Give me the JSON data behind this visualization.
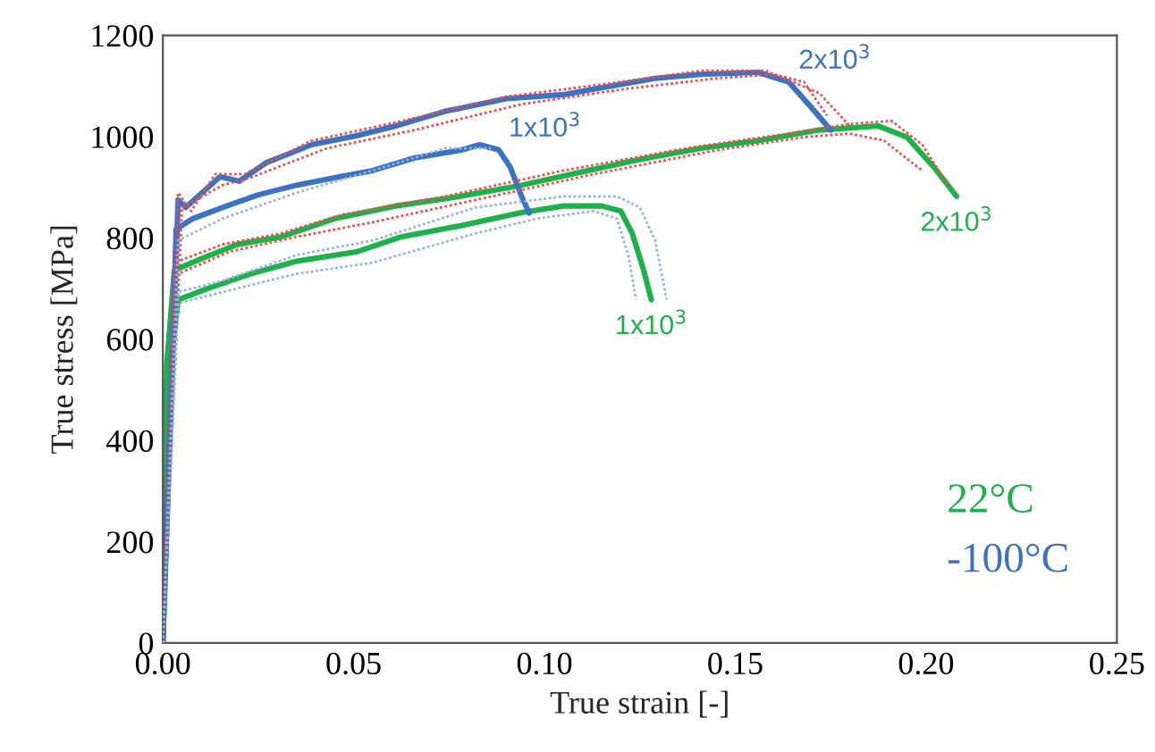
{
  "chart_data": {
    "type": "line",
    "xlabel": "True strain [-]",
    "ylabel": "True stress [MPa]",
    "xlim": [
      0,
      0.25
    ],
    "xticks": [
      {
        "value": 0,
        "label": "0.00"
      },
      0.05,
      {
        "value": 0.1,
        "label": "0.10"
      },
      0.15,
      {
        "value": 0.2,
        "label": "0.20"
      },
      0.25
    ],
    "ylim": [
      0,
      1200
    ],
    "yticks": [
      0,
      200,
      400,
      600,
      800,
      1000,
      1200
    ],
    "grid": false,
    "legend": "bottom right",
    "marker": "none",
    "series": [
      {
        "color": "#f04a4a",
        "line_style": "dotted",
        "x": [
          0,
          0.004,
          0.0074,
          0.0137,
          0.0215,
          0.039,
          0.061,
          0.09,
          0.113,
          0.141,
          0.158,
          0.172,
          0.18
        ],
        "values": [
          0,
          889,
          853,
          926,
          926,
          992,
          1028,
          1079,
          1101,
          1130,
          1130,
          1086,
          1021
        ]
      },
      {
        "color": "#f04a4a",
        "line_style": "dotted",
        "x": [
          0,
          0.005,
          0.0156,
          0.023,
          0.043,
          0.066,
          0.094,
          0.121,
          0.145,
          0.16,
          0.168,
          0.174
        ],
        "values": [
          0,
          860,
          904,
          919,
          977,
          1013,
          1064,
          1094,
          1115,
          1123,
          1108,
          1042
        ]
      },
      {
        "color": "#f04a4a",
        "line_style": "dotted",
        "x": [
          0,
          0.003,
          0.0156,
          0.031,
          0.047,
          0.074,
          0.105,
          0.137,
          0.164,
          0.18,
          0.191,
          0.199,
          0.206
        ],
        "values": [
          0,
          751,
          787,
          809,
          846,
          882,
          933,
          977,
          1006,
          1025,
          1031,
          984,
          900
        ]
      },
      {
        "color": "#f04a4a",
        "line_style": "dotted",
        "x": [
          0,
          0.004,
          0.0176,
          0.035,
          0.055,
          0.082,
          0.113,
          0.145,
          0.168,
          0.18,
          0.189,
          0.194,
          0.199
        ],
        "values": [
          0,
          729,
          773,
          802,
          831,
          875,
          926,
          973,
          999,
          1006,
          992,
          962,
          933
        ]
      },
      {
        "color": "#8fb4e3",
        "line_style": "dotted",
        "x": [
          0,
          0.004,
          0.0156,
          0.035,
          0.055,
          0.082,
          0.105,
          0.119,
          0.125,
          0.129,
          0.132
        ],
        "values": [
          0,
          693,
          715,
          766,
          795,
          860,
          882,
          882,
          860,
          795,
          678
        ]
      },
      {
        "color": "#8fb4e3",
        "line_style": "dotted",
        "x": [
          0,
          0.004,
          0.0156,
          0.035,
          0.055,
          0.082,
          0.098,
          0.113,
          0.119,
          0.122,
          0.124
        ],
        "values": [
          0,
          671,
          693,
          729,
          751,
          809,
          838,
          853,
          838,
          765,
          678
        ]
      },
      {
        "color": "#8fb4e3",
        "line_style": "dotted",
        "x": [
          0,
          0.004,
          0.0156,
          0.035,
          0.055,
          0.074,
          0.086
        ],
        "values": [
          0,
          795,
          838,
          889,
          933,
          977,
          977
        ]
      },
      {
        "color": "#1db14b",
        "line_style": "solid",
        "name": "22°C",
        "x": [
          0,
          0.001,
          0.003,
          0.0098,
          0.0195,
          0.031,
          0.045,
          0.061,
          0.078,
          0.094,
          0.109,
          0.125,
          0.141,
          0.156,
          0.172,
          0.1875,
          0.195,
          0.202,
          0.208
        ],
        "values": [
          0,
          547,
          736,
          758,
          787,
          802,
          838,
          863,
          882,
          904,
          929,
          955,
          977,
          992,
          1013,
          1021,
          999,
          940,
          882
        ]
      },
      {
        "color": "#1db14b",
        "line_style": "solid",
        "x": [
          0,
          0.001,
          0.004,
          0.0117,
          0.023,
          0.035,
          0.051,
          0.0625,
          0.078,
          0.094,
          0.105,
          0.115,
          0.12,
          0.123,
          0.126,
          0.128
        ],
        "values": [
          0,
          474,
          678,
          700,
          729,
          754,
          773,
          802,
          824,
          850,
          863,
          863,
          853,
          809,
          736,
          678
        ]
      },
      {
        "color": "#3a73c4",
        "line_style": "solid",
        "name": "-100°C",
        "x": [
          0,
          0.004,
          0.006,
          0.015,
          0.02,
          0.027,
          0.039,
          0.051,
          0.061,
          0.074,
          0.09,
          0.105,
          0.113,
          0.129,
          0.141,
          0.156,
          0.164,
          0.17,
          0.175
        ],
        "values": [
          0,
          875,
          860,
          921,
          912,
          948,
          984,
          1002,
          1021,
          1050,
          1075,
          1083,
          1094,
          1115,
          1123,
          1127,
          1108,
          1057,
          1013
        ]
      },
      {
        "color": "#3a73c4",
        "line_style": "solid",
        "x": [
          0,
          0.0035,
          0.0078,
          0.0156,
          0.025,
          0.035,
          0.045,
          0.055,
          0.066,
          0.078,
          0.083,
          0.088,
          0.091,
          0.094,
          0.096
        ],
        "values": [
          0,
          817,
          838,
          860,
          885,
          904,
          919,
          933,
          958,
          973,
          984,
          974,
          940,
          882,
          849
        ]
      }
    ],
    "annotations": [
      {
        "text": "2x10$^{3}$",
        "x": 0.164,
        "y": 1108
      },
      {
        "text": "1x10$^{3}$",
        "x": 0.088,
        "y": 974
      },
      {
        "text": "2x10$^{3}$",
        "x": 0.208,
        "y": 882
      },
      {
        "text": "1x10$^{3}$",
        "x": 0.128,
        "y": 678
      }
    ]
  }
}
